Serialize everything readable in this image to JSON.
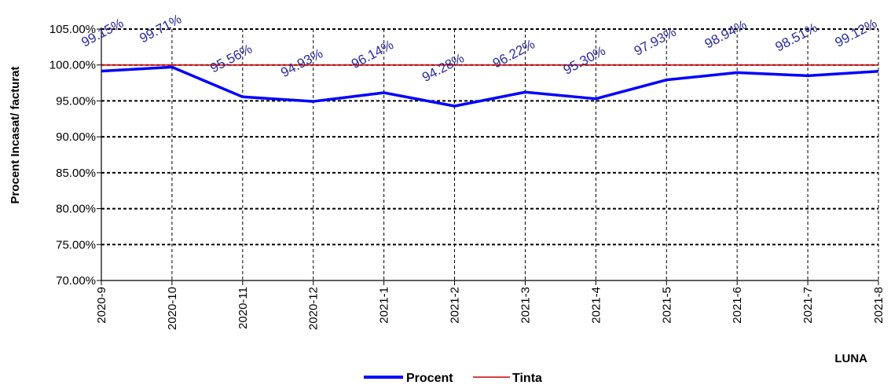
{
  "chart_data": {
    "type": "line",
    "title": "",
    "xlabel": "LUNA",
    "ylabel": "Procent Incasat/ facturat",
    "ylim": [
      70,
      105
    ],
    "yticks": [
      "70.00%",
      "75.00%",
      "80.00%",
      "85.00%",
      "90.00%",
      "95.00%",
      "100.00%",
      "105.00%"
    ],
    "categories": [
      "2020-9",
      "2020-10",
      "2020-11",
      "2020-12",
      "2021-1",
      "2021-2",
      "2021-3",
      "2021-4",
      "2021-5",
      "2021-6",
      "2021-7",
      "2021-8"
    ],
    "series": [
      {
        "name": "Procent",
        "color": "#0000ff",
        "values": [
          99.15,
          99.71,
          95.56,
          94.93,
          96.14,
          94.28,
          96.22,
          95.3,
          97.93,
          98.94,
          98.51,
          99.12
        ],
        "labels": [
          "99.15%",
          "99.71%",
          "95.56%",
          "94.93%",
          "96.14%",
          "94.28%",
          "96.22%",
          "95.30%",
          "97.93%",
          "98.94%",
          "98.51%",
          "99.12%"
        ]
      },
      {
        "name": "Tinta",
        "color": "#cc0000",
        "values": [
          100,
          100,
          100,
          100,
          100,
          100,
          100,
          100,
          100,
          100,
          100,
          100
        ]
      }
    ],
    "grid": true,
    "legend": "bottom-center"
  }
}
